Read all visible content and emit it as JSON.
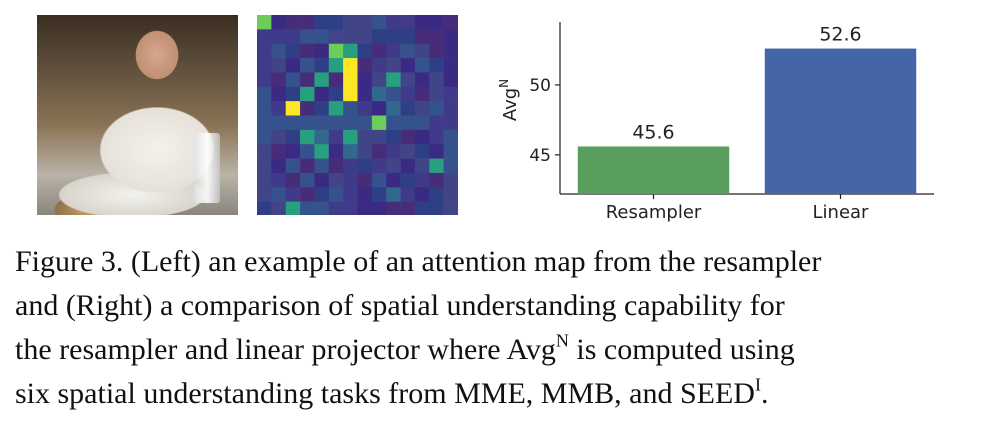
{
  "caption": {
    "line1": "Figure 3. (Left) an example of an attention map from the resampler",
    "line2": "and (Right) a comparison of spatial understanding capability for",
    "line3_pre": "the resampler and linear projector where Avg",
    "line3_sup": "N",
    "line3_post": " is computed using",
    "line4_pre": "six spatial understanding tasks from MME, MMB, and SEED",
    "line4_sup": "I",
    "line4_post": "."
  },
  "heatmap_colors": {
    "low": "#3b2a84",
    "mid": "#31688e",
    "teal": "#26a07f",
    "green": "#6cce59",
    "high": "#fde725"
  },
  "chart_data": {
    "type": "bar",
    "categories": [
      "Resampler",
      "Linear"
    ],
    "values": [
      45.6,
      52.6
    ],
    "data_labels": [
      "45.6",
      "52.6"
    ],
    "ylabel_base": "Avg",
    "ylabel_sup": "N",
    "yticks": [
      45,
      50
    ],
    "ylim": [
      42.2,
      54.5
    ],
    "colors": [
      "#5a9e5e",
      "#4466a8"
    ],
    "grid": false
  }
}
